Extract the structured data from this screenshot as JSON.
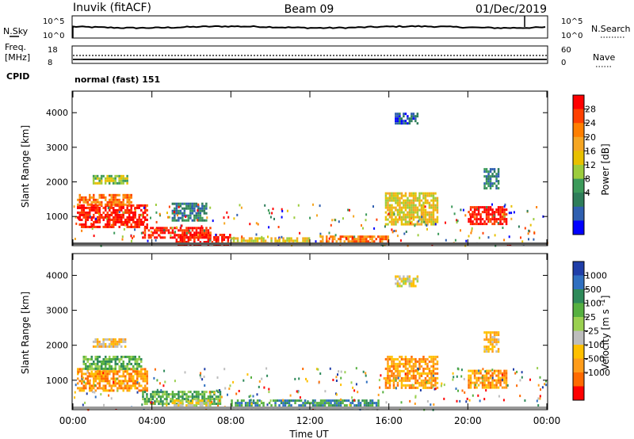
{
  "header": {
    "station": "Inuvik (fitACF)",
    "beam": "Beam 09",
    "date": "01/Dec/2019"
  },
  "noise_panel": {
    "left_label": "N.Sky",
    "right_label": "N.Search",
    "ticks_left": [
      "10^5",
      "10^0"
    ],
    "ticks_right": [
      "10^5",
      "10^0"
    ]
  },
  "freq_panel": {
    "left_label_line1": "Freq.",
    "left_label_line2": "[MHz]",
    "left_ticks": [
      "18",
      "8"
    ],
    "right_ticks": [
      "60",
      "0"
    ],
    "right_label": "Nave",
    "cpid_label": "CPID",
    "cpid_value": "normal (fast) 151"
  },
  "chart_data": [
    {
      "type": "heatmap",
      "name": "power",
      "ylabel": "Slant Range [km]",
      "yticks": [
        "4000",
        "3000",
        "2000",
        "1000"
      ],
      "ylim": [
        180,
        4600
      ],
      "xlim": [
        0,
        24
      ],
      "xticks": [
        "00:00",
        "04:00",
        "08:00",
        "12:00",
        "16:00",
        "20:00",
        "00:00"
      ],
      "colorbar": {
        "label": "Power [dB]",
        "ticks": [
          "28",
          "24",
          "20",
          "16",
          "12",
          "8",
          "4"
        ],
        "colors": [
          "#ff0000",
          "#ff4000",
          "#ff7f00",
          "#f5a623",
          "#e8c000",
          "#9ccc3c",
          "#3c9a5a",
          "#2e7d5a",
          "#2f5fb0",
          "#0000ff"
        ]
      },
      "regions": [
        {
          "t0": 0.2,
          "t1": 3.8,
          "r0": 700,
          "r1": 1350,
          "level": 0
        },
        {
          "t0": 0.2,
          "t1": 3.0,
          "r0": 1350,
          "r1": 1650,
          "level": 2
        },
        {
          "t0": 1.0,
          "t1": 2.8,
          "r0": 1950,
          "r1": 2200,
          "level": 5
        },
        {
          "t0": 3.5,
          "t1": 7.0,
          "r0": 400,
          "r1": 700,
          "level": 0
        },
        {
          "t0": 5.2,
          "t1": 8.0,
          "r0": 200,
          "r1": 500,
          "level": 0
        },
        {
          "t0": 5.0,
          "t1": 6.8,
          "r0": 900,
          "r1": 1400,
          "level": 7
        },
        {
          "t0": 8.0,
          "t1": 12.0,
          "r0": 200,
          "r1": 400,
          "level": 4
        },
        {
          "t0": 12.5,
          "t1": 16.0,
          "r0": 250,
          "r1": 450,
          "level": 2
        },
        {
          "t0": 15.8,
          "t1": 18.5,
          "r0": 800,
          "r1": 1700,
          "level": 4
        },
        {
          "t0": 16.3,
          "t1": 17.5,
          "r0": 3700,
          "r1": 4000,
          "level": 8
        },
        {
          "t0": 20.0,
          "t1": 22.0,
          "r0": 800,
          "r1": 1300,
          "level": 0
        },
        {
          "t0": 20.8,
          "t1": 21.6,
          "r0": 1800,
          "r1": 2400,
          "level": 7
        }
      ]
    },
    {
      "type": "heatmap",
      "name": "velocity",
      "ylabel": "Slant Range [km]",
      "yticks": [
        "4000",
        "3000",
        "2000",
        "1000"
      ],
      "ylim": [
        180,
        4600
      ],
      "xlim": [
        0,
        24
      ],
      "xticks": [
        "00:00",
        "04:00",
        "08:00",
        "12:00",
        "16:00",
        "20:00",
        "00:00"
      ],
      "xlabel": "Time UT",
      "colorbar": {
        "label": "Velocity [m s^-1]",
        "ticks": [
          "1000",
          "500",
          "100",
          "25",
          "-25",
          "-100",
          "-500",
          "-1000"
        ],
        "colors": [
          "#1f3ea8",
          "#2f6fc0",
          "#2e8a5a",
          "#56b040",
          "#9ad050",
          "#bdbdbd",
          "#ffc000",
          "#ff9c1a",
          "#ff6a00",
          "#ff0000"
        ]
      },
      "regions": [
        {
          "t0": 0.2,
          "t1": 3.8,
          "r0": 700,
          "r1": 1350,
          "level": 7
        },
        {
          "t0": 0.5,
          "t1": 3.5,
          "r0": 1350,
          "r1": 1700,
          "level": 3
        },
        {
          "t0": 1.0,
          "t1": 2.8,
          "r0": 1950,
          "r1": 2200,
          "level": 6
        },
        {
          "t0": 3.5,
          "t1": 7.5,
          "r0": 300,
          "r1": 700,
          "level": 3
        },
        {
          "t0": 5.0,
          "t1": 7.0,
          "r0": 200,
          "r1": 450,
          "level": 5
        },
        {
          "t0": 8.0,
          "t1": 15.5,
          "r0": 200,
          "r1": 450,
          "level": 2
        },
        {
          "t0": 15.8,
          "t1": 18.5,
          "r0": 800,
          "r1": 1700,
          "level": 7
        },
        {
          "t0": 16.3,
          "t1": 17.5,
          "r0": 3700,
          "r1": 4000,
          "level": 5
        },
        {
          "t0": 20.0,
          "t1": 22.0,
          "r0": 800,
          "r1": 1300,
          "level": 7
        },
        {
          "t0": 20.8,
          "t1": 21.6,
          "r0": 1800,
          "r1": 2400,
          "level": 6
        }
      ]
    }
  ]
}
